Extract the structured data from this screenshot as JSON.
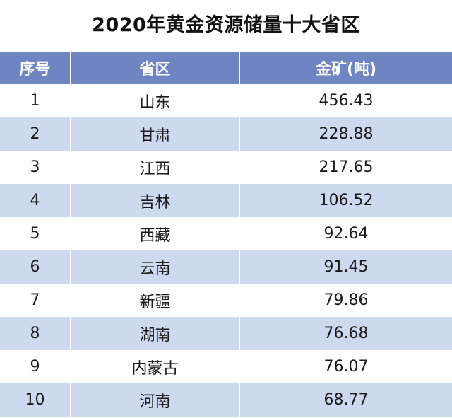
{
  "chart_data": {
    "type": "table",
    "title": "2020年黄金资源储量十大省区",
    "columns": [
      "序号",
      "省区",
      "金矿(吨)"
    ],
    "rows": [
      [
        "1",
        "山东",
        "456.43"
      ],
      [
        "2",
        "甘肃",
        "228.88"
      ],
      [
        "3",
        "江西",
        "217.65"
      ],
      [
        "4",
        "吉林",
        "106.52"
      ],
      [
        "5",
        "西藏",
        "92.64"
      ],
      [
        "6",
        "云南",
        "91.45"
      ],
      [
        "7",
        "新疆",
        "79.86"
      ],
      [
        "8",
        "湖南",
        "76.68"
      ],
      [
        "9",
        "内蒙古",
        "76.07"
      ],
      [
        "10",
        "河南",
        "68.77"
      ]
    ]
  },
  "colors": {
    "header_bg": "#6e84c3",
    "header_text": "#ffffff",
    "band_bg": "#cdd9ef",
    "row_bg": "#ffffff"
  }
}
